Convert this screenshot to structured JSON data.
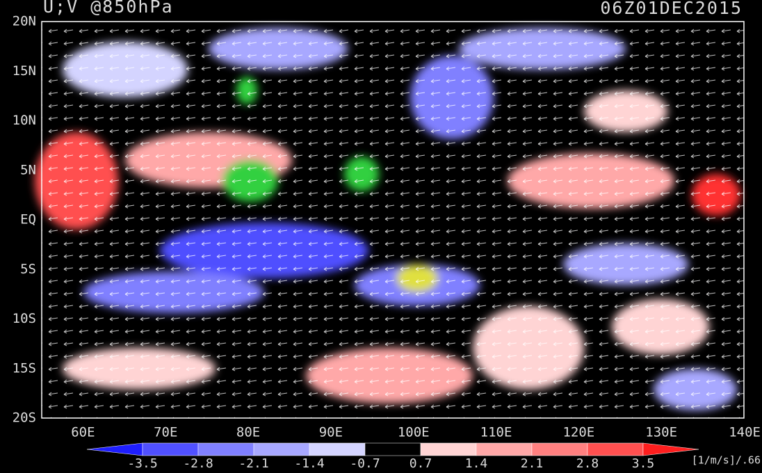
{
  "header": {
    "title": "U;V @850hPa",
    "time": "06Z01DEC2015"
  },
  "map": {
    "lat_labels": [
      "20N",
      "15N",
      "10N",
      "5N",
      "EQ",
      "5S",
      "10S",
      "15S",
      "20S"
    ],
    "lon_labels": [
      "60E",
      "70E",
      "80E",
      "90E",
      "100E",
      "110E",
      "120E",
      "130E",
      "140E"
    ]
  },
  "colorbar": {
    "labels": [
      "-3.5",
      "-2.8",
      "-2.1",
      "-1.4",
      "-0.7",
      "0.7",
      "1.4",
      "2.1",
      "2.8",
      "3.5"
    ],
    "colors": [
      "#1e1eff",
      "#5050ff",
      "#8080ff",
      "#a8a8ff",
      "#d4d4ff",
      "#000000",
      "#ffd4d4",
      "#ffa8a8",
      "#ff8080",
      "#ff5050",
      "#ff1e1e"
    ],
    "units": "[1/m/s]/.66"
  }
}
